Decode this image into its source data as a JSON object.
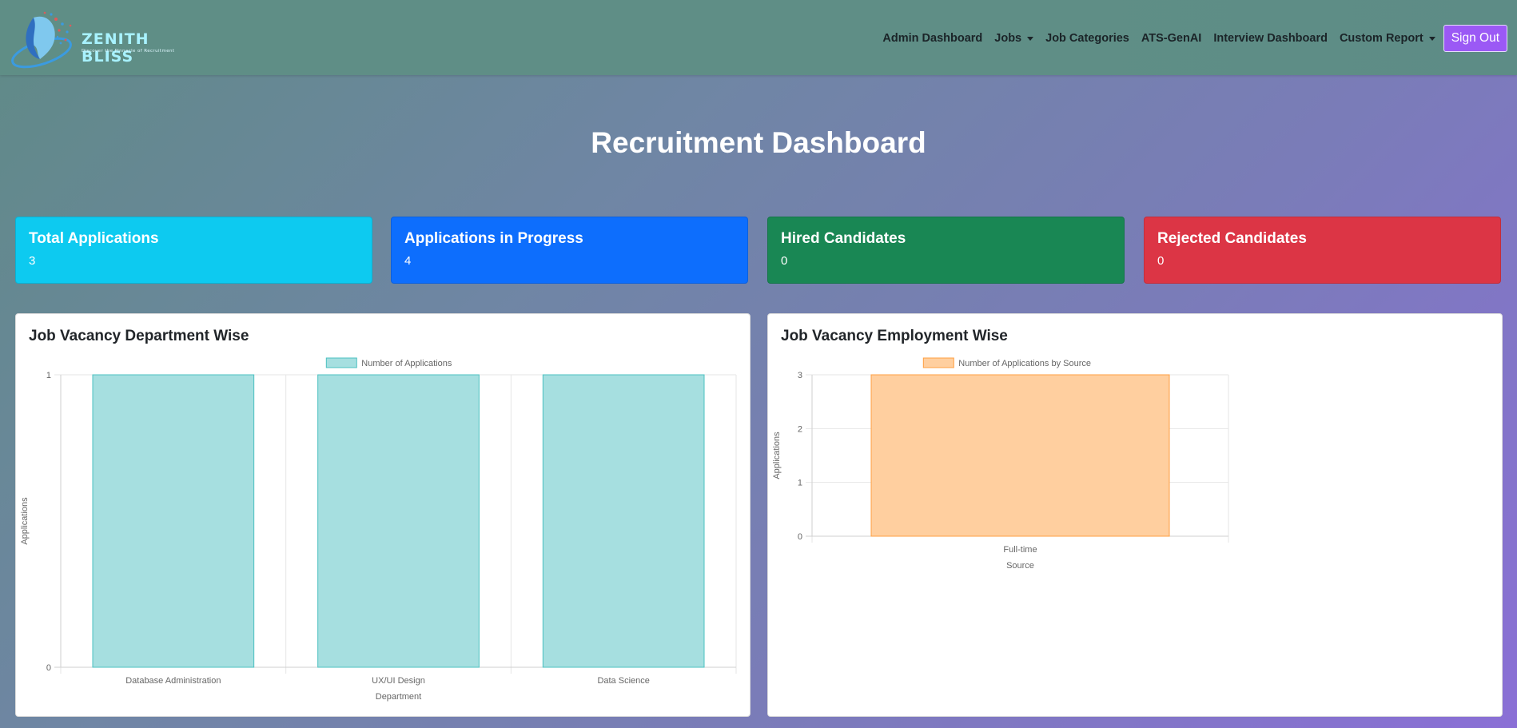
{
  "brand": {
    "name": "ZENITH BLISS",
    "tagline": "Discover the Pinnacle of Recruitment"
  },
  "nav": {
    "items": [
      {
        "label": "Admin Dashboard",
        "dropdown": false
      },
      {
        "label": "Jobs",
        "dropdown": true
      },
      {
        "label": "Job Categories",
        "dropdown": false
      },
      {
        "label": "ATS-GenAI",
        "dropdown": false
      },
      {
        "label": "Interview Dashboard",
        "dropdown": false
      },
      {
        "label": "Custom Report",
        "dropdown": true
      }
    ],
    "signout_label": "Sign Out"
  },
  "page_title": "Recruitment Dashboard",
  "stats": [
    {
      "title": "Total Applications",
      "value": "3",
      "color": "#0dcaf0"
    },
    {
      "title": "Applications in Progress",
      "value": "4",
      "color": "#0d6efd"
    },
    {
      "title": "Hired Candidates",
      "value": "0",
      "color": "#198754"
    },
    {
      "title": "Rejected Candidates",
      "value": "0",
      "color": "#dc3545"
    }
  ],
  "panels": {
    "department": {
      "title": "Job Vacancy Department Wise"
    },
    "employment": {
      "title": "Job Vacancy Employment Wise"
    }
  },
  "chart_data": [
    {
      "type": "bar",
      "categories": [
        "Database Administration",
        "UX/UI Design",
        "Data Science"
      ],
      "series": [
        {
          "name": "Number of Applications",
          "values": [
            1,
            1,
            1
          ]
        }
      ],
      "xlabel": "Department",
      "ylabel": "Applications",
      "ylim": [
        0,
        1
      ],
      "yticks": [
        0,
        1
      ],
      "grid": true,
      "legend": "top",
      "fill_color": "#a6dfe0",
      "stroke_color": "#4bc0c0"
    },
    {
      "type": "bar",
      "categories": [
        "Full-time"
      ],
      "series": [
        {
          "name": "Number of Applications by Source",
          "values": [
            3
          ]
        }
      ],
      "xlabel": "Source",
      "ylabel": "Applications",
      "ylim": [
        0,
        3
      ],
      "yticks": [
        0,
        1,
        2,
        3
      ],
      "grid": true,
      "legend": "top",
      "fill_color": "#ffcf9f",
      "stroke_color": "#ff9f40"
    }
  ]
}
